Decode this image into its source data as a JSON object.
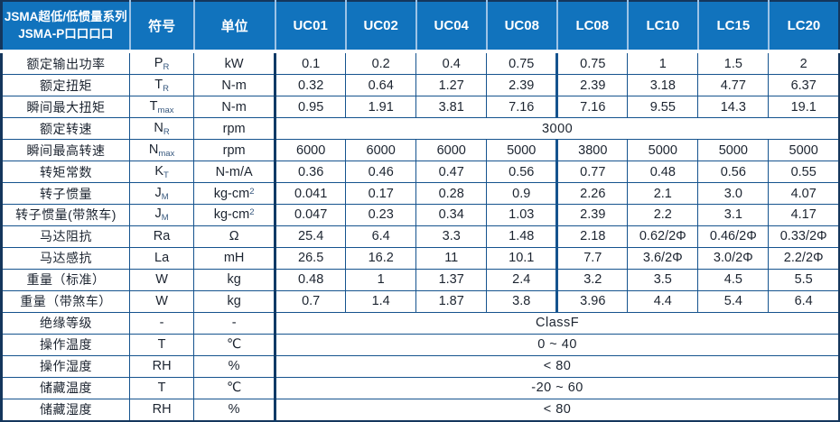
{
  "colors": {
    "header_bg": "#1173BD",
    "header_text": "#FFFFFF",
    "header_divider": "#9DC3E6",
    "grid_border": "#15538E",
    "dark_divider": "#0F3A66",
    "outer_border": "#14365C",
    "text": "#1C2430"
  },
  "header": {
    "series_title_line1": "JSMA超低/低惯量系列",
    "series_title_line2": "JSMA-P口口口口",
    "symbol_col": "符号",
    "unit_col": "单位",
    "models": [
      "UC01",
      "UC02",
      "UC04",
      "UC08",
      "LC08",
      "LC10",
      "LC15",
      "LC20"
    ]
  },
  "rows": [
    {
      "label": "额定输出功率",
      "symbol": "P",
      "sub": "R",
      "unit": "kW",
      "values": [
        "0.1",
        "0.2",
        "0.4",
        "0.75",
        "0.75",
        "1",
        "1.5",
        "2"
      ]
    },
    {
      "label": "额定扭矩",
      "symbol": "T",
      "sub": "R",
      "unit": "N-m",
      "values": [
        "0.32",
        "0.64",
        "1.27",
        "2.39",
        "2.39",
        "3.18",
        "4.77",
        "6.37"
      ]
    },
    {
      "label": "瞬间最大扭矩",
      "symbol": "T",
      "sub": "max",
      "unit": "N-m",
      "values": [
        "0.95",
        "1.91",
        "3.81",
        "7.16",
        "7.16",
        "9.55",
        "14.3",
        "19.1"
      ]
    },
    {
      "label": "额定转速",
      "symbol": "N",
      "sub": "R",
      "unit": "rpm",
      "span": "3000"
    },
    {
      "label": "瞬间最高转速",
      "symbol": "N",
      "sub": "max",
      "unit": "rpm",
      "values": [
        "6000",
        "6000",
        "6000",
        "5000",
        "3800",
        "5000",
        "5000",
        "5000"
      ]
    },
    {
      "label": "转矩常数",
      "symbol": "K",
      "sub": "T",
      "unit": "N-m/A",
      "values": [
        "0.36",
        "0.46",
        "0.47",
        "0.56",
        "0.77",
        "0.48",
        "0.56",
        "0.55"
      ]
    },
    {
      "label": "转子惯量",
      "symbol": "J",
      "sub": "M",
      "unit": "kg-cm",
      "unit_sup": "2",
      "values": [
        "0.041",
        "0.17",
        "0.28",
        "0.9",
        "2.26",
        "2.1",
        "3.0",
        "4.07"
      ]
    },
    {
      "label": "转子惯量(带煞车)",
      "symbol": "J",
      "sub": "M",
      "unit": "kg-cm",
      "unit_sup": "2",
      "values": [
        "0.047",
        "0.23",
        "0.34",
        "1.03",
        "2.39",
        "2.2",
        "3.1",
        "4.17"
      ]
    },
    {
      "label": "马达阻抗",
      "symbol": "Ra",
      "unit": "Ω",
      "values": [
        "25.4",
        "6.4",
        "3.3",
        "1.48",
        "2.18",
        "0.62/2Φ",
        "0.46/2Φ",
        "0.33/2Φ"
      ]
    },
    {
      "label": "马达感抗",
      "symbol": "La",
      "unit": "mH",
      "values": [
        "26.5",
        "16.2",
        "11",
        "10.1",
        "7.7",
        "3.6/2Φ",
        "3.0/2Φ",
        "2.2/2Φ"
      ]
    },
    {
      "label": "重量（标准）",
      "symbol": "W",
      "unit": "kg",
      "values": [
        "0.48",
        "1",
        "1.37",
        "2.4",
        "3.2",
        "3.5",
        "4.5",
        "5.5"
      ]
    },
    {
      "label": "重量（带煞车）",
      "symbol": "W",
      "unit": "kg",
      "values": [
        "0.7",
        "1.4",
        "1.87",
        "3.8",
        "3.96",
        "4.4",
        "5.4",
        "6.4"
      ]
    },
    {
      "label": "绝缘等级",
      "symbol": "-",
      "unit": "-",
      "span": "ClassF"
    },
    {
      "label": "操作温度",
      "symbol": "T",
      "unit": "℃",
      "span": "0 ~ 40"
    },
    {
      "label": "操作湿度",
      "symbol": "RH",
      "unit": "%",
      "span": "< 80"
    },
    {
      "label": "储藏温度",
      "symbol": "T",
      "unit": "℃",
      "span": "-20 ~ 60"
    },
    {
      "label": "储藏湿度",
      "symbol": "RH",
      "unit": "%",
      "span": "< 80"
    }
  ]
}
